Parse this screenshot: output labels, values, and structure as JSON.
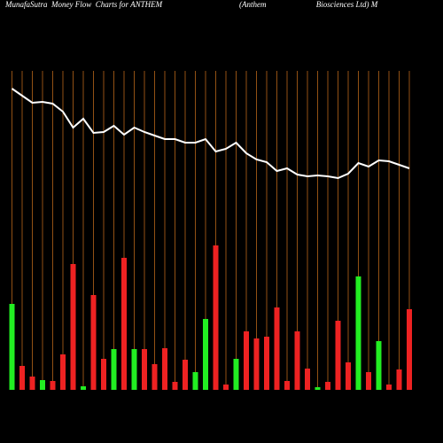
{
  "chart_data": {
    "type": "bar",
    "title": "MunafaSutra  Money Flow  Charts for ANTHEM",
    "subtitle": "(Anthem                         Biosciences Ltd) M",
    "values": [
      97,
      27,
      15,
      11,
      10,
      40,
      142,
      4,
      107,
      35,
      46,
      149,
      46,
      46,
      29,
      47,
      9,
      34,
      20,
      80,
      163,
      6,
      35,
      66,
      58,
      60,
      93,
      10,
      66,
      24,
      3,
      9,
      78,
      31,
      128,
      20,
      55,
      6,
      23,
      91
    ],
    "colors": [
      "#22ee22",
      "#ee2222",
      "#ee2222",
      "#22ee22",
      "#ee2222",
      "#ee2222",
      "#ee2222",
      "#22ee22",
      "#ee2222",
      "#ee2222",
      "#22ee22",
      "#ee2222",
      "#22ee22",
      "#ee2222",
      "#ee2222",
      "#ee2222",
      "#ee2222",
      "#ee2222",
      "#22ee22",
      "#22ee22",
      "#ee2222",
      "#ee2222",
      "#22ee22",
      "#ee2222",
      "#ee2222",
      "#ee2222",
      "#ee2222",
      "#ee2222",
      "#ee2222",
      "#ee2222",
      "#22ee22",
      "#ee2222",
      "#ee2222",
      "#ee2222",
      "#22ee22",
      "#ee2222",
      "#22ee22",
      "#ee2222",
      "#ee2222",
      "#ee2222"
    ],
    "ylim": [
      0,
      440
    ],
    "line": {
      "color": "#ffffff",
      "values": [
        400,
        392,
        384,
        385,
        383,
        374,
        356,
        366,
        350,
        351,
        358,
        348,
        356,
        351,
        347,
        343,
        343,
        339,
        339,
        343,
        329,
        332,
        339,
        327,
        320,
        317,
        307,
        310,
        303,
        301,
        302,
        301,
        299,
        304,
        316,
        312,
        319,
        318,
        314,
        310
      ],
      "ylim": [
        0,
        500
      ]
    },
    "grid_color": "#b8661a"
  }
}
